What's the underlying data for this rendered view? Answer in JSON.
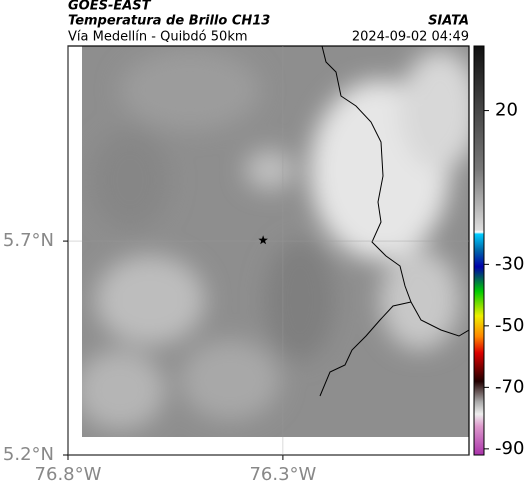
{
  "header": {
    "title": "GOES-EAST",
    "subtitle": "Temperatura de Brillo CH13",
    "source": "SIATA",
    "route": "Vía Medellín - Quibdó 50km",
    "timestamp": "2024-09-02 04:49"
  },
  "map": {
    "xlim": [
      -76.8,
      -75.867
    ],
    "ylim": [
      5.2,
      6.156
    ],
    "xticks": [
      {
        "value": -76.8,
        "label": "76.8°W"
      },
      {
        "value": -76.3,
        "label": "76.3°W"
      }
    ],
    "yticks": [
      {
        "value": 5.2,
        "label": "5.2°N"
      },
      {
        "value": 5.7,
        "label": "5.7°N"
      }
    ],
    "grid": true,
    "marker": {
      "lon": -76.346,
      "lat": 5.702
    }
  },
  "colorbar": {
    "lim": [
      -92,
      41
    ],
    "ticks": [
      20,
      -30,
      -50,
      -70,
      -90
    ]
  }
}
